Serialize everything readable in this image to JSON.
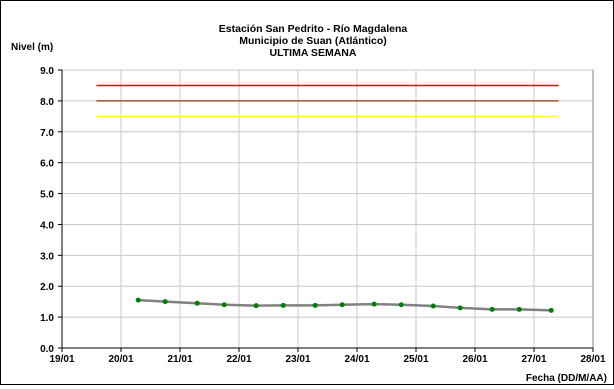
{
  "chart_data": {
    "type": "line",
    "title_lines": [
      "Estación San Pedrito - Río Magdalena",
      "Municipio de Suan (Atlántico)",
      "ULTIMA SEMANA"
    ],
    "xlabel": "Fecha (DD/M/AA)",
    "ylabel": "Nivel (m)",
    "xlim": [
      "19/01",
      "28/01"
    ],
    "ylim": [
      0,
      9
    ],
    "x_tick_labels": [
      "19/01",
      "20/01",
      "21/01",
      "22/01",
      "23/01",
      "24/01",
      "25/01",
      "26/01",
      "27/01",
      "28/01"
    ],
    "y_tick_labels": [
      "0.0",
      "1.0",
      "2.0",
      "3.0",
      "4.0",
      "5.0",
      "6.0",
      "7.0",
      "8.0",
      "9.0"
    ],
    "grid": true,
    "legend": "none",
    "thresholds": [
      {
        "value": 8.5,
        "color": "#e30613"
      },
      {
        "value": 8.0,
        "color": "#a0522d"
      },
      {
        "value": 7.5,
        "color": "#ffff33"
      }
    ],
    "threshold_x_range": [
      "19/01 14:00",
      "27/01 10:00"
    ],
    "series": [
      {
        "color": "#808080",
        "marker_color": "#008000",
        "x": [
          "20/01 07:00",
          "20/01 18:00",
          "21/01 07:00",
          "21/01 18:00",
          "22/01 07:00",
          "22/01 18:00",
          "23/01 07:00",
          "23/01 18:00",
          "24/01 07:00",
          "24/01 18:00",
          "25/01 07:00",
          "25/01 18:00",
          "26/01 07:00",
          "26/01 18:00",
          "27/01 07:00"
        ],
        "values": [
          1.55,
          1.5,
          1.45,
          1.4,
          1.37,
          1.38,
          1.38,
          1.4,
          1.42,
          1.4,
          1.36,
          1.3,
          1.25,
          1.25,
          1.22
        ]
      }
    ]
  }
}
